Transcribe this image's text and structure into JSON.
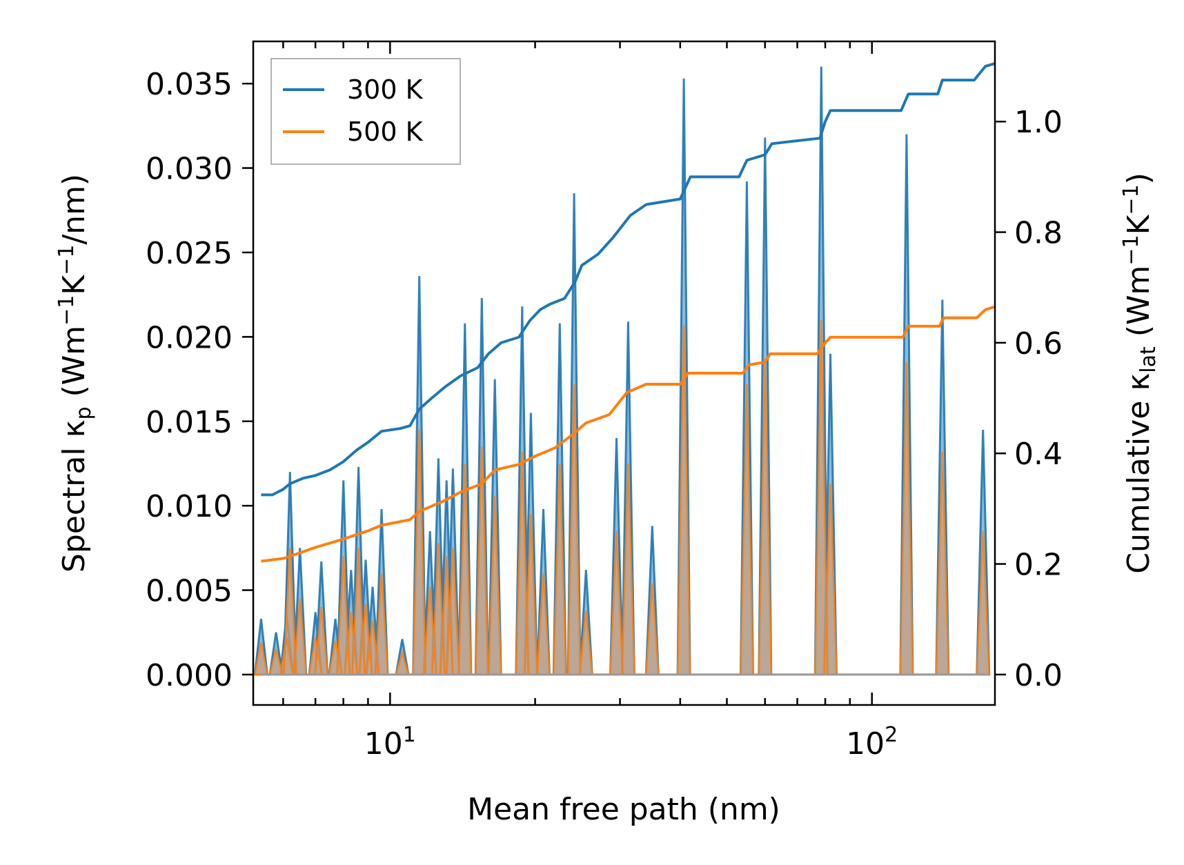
{
  "chart_data": {
    "type": "line",
    "x_scale": "log",
    "xlim": [
      5.2,
      180
    ],
    "ylim_left": [
      -0.0018,
      0.0375
    ],
    "ylim_right": [
      -0.055,
      1.145
    ],
    "xlabel": "Mean free path (nm)",
    "ylabel_left": {
      "base": "Spectral κ",
      "sub": "p",
      "unit_open": " (Wm",
      "exp1": "−1",
      "mid": "K",
      "exp2": "−1",
      "tail": "/nm)"
    },
    "ylabel_right": {
      "base": "Cumulative κ",
      "sub": "lat",
      "unit_open": " (Wm",
      "exp1": "−1",
      "mid": "K",
      "exp2": "−1",
      "tail": ")"
    },
    "x_tick_labels": [
      {
        "value": 10,
        "base": "10",
        "exp": "1"
      },
      {
        "value": 100,
        "base": "10",
        "exp": "2"
      }
    ],
    "left_ticks": [
      {
        "value": 0.0,
        "label": "0.000"
      },
      {
        "value": 0.005,
        "label": "0.005"
      },
      {
        "value": 0.01,
        "label": "0.010"
      },
      {
        "value": 0.015,
        "label": "0.015"
      },
      {
        "value": 0.02,
        "label": "0.020"
      },
      {
        "value": 0.025,
        "label": "0.025"
      },
      {
        "value": 0.03,
        "label": "0.030"
      },
      {
        "value": 0.035,
        "label": "0.035"
      }
    ],
    "right_ticks": [
      {
        "value": 0.0,
        "label": "0.0"
      },
      {
        "value": 0.2,
        "label": "0.2"
      },
      {
        "value": 0.4,
        "label": "0.4"
      },
      {
        "value": 0.6,
        "label": "0.6"
      },
      {
        "value": 0.8,
        "label": "0.8"
      },
      {
        "value": 1.0,
        "label": "1.0"
      }
    ],
    "legend": {
      "position": "top-left",
      "entries": [
        "300 K",
        "500 K"
      ]
    },
    "series": [
      {
        "name": "300 K",
        "color": "#1f77b4",
        "fill_color": "#1f77b4",
        "spectral_peaks": [
          [
            5.4,
            0.0033
          ],
          [
            5.8,
            0.0025
          ],
          [
            6.1,
            0.0036
          ],
          [
            6.2,
            0.012
          ],
          [
            6.5,
            0.0075
          ],
          [
            7.0,
            0.0037
          ],
          [
            7.2,
            0.0067
          ],
          [
            7.7,
            0.0033
          ],
          [
            8.0,
            0.0115
          ],
          [
            8.3,
            0.0062
          ],
          [
            8.6,
            0.0123
          ],
          [
            8.9,
            0.0068
          ],
          [
            9.2,
            0.0052
          ],
          [
            9.6,
            0.0098
          ],
          [
            10.6,
            0.0021
          ],
          [
            11.5,
            0.0236
          ],
          [
            12.1,
            0.0085
          ],
          [
            12.6,
            0.0128
          ],
          [
            13.1,
            0.0115
          ],
          [
            13.5,
            0.0122
          ],
          [
            14.3,
            0.0208
          ],
          [
            15.5,
            0.0223
          ],
          [
            16.5,
            0.0175
          ],
          [
            18.8,
            0.0218
          ],
          [
            19.6,
            0.0155
          ],
          [
            20.8,
            0.0098
          ],
          [
            22.5,
            0.0208
          ],
          [
            24.1,
            0.0285
          ],
          [
            25.5,
            0.0062
          ],
          [
            29.5,
            0.014
          ],
          [
            31.2,
            0.0209
          ],
          [
            35.0,
            0.0088
          ],
          [
            40.7,
            0.0353
          ],
          [
            55.0,
            0.0292
          ],
          [
            60.0,
            0.0318
          ],
          [
            78.5,
            0.036
          ],
          [
            82.0,
            0.019
          ],
          [
            118.0,
            0.032
          ],
          [
            140.0,
            0.0222
          ],
          [
            170.0,
            0.0145
          ]
        ],
        "cumulative": [
          [
            5.4,
            0.325
          ],
          [
            5.7,
            0.325
          ],
          [
            6.0,
            0.335
          ],
          [
            6.2,
            0.345
          ],
          [
            6.6,
            0.355
          ],
          [
            7.0,
            0.36
          ],
          [
            7.5,
            0.37
          ],
          [
            8.0,
            0.385
          ],
          [
            8.5,
            0.405
          ],
          [
            9.0,
            0.42
          ],
          [
            9.6,
            0.44
          ],
          [
            10.5,
            0.445
          ],
          [
            11.0,
            0.45
          ],
          [
            11.5,
            0.48
          ],
          [
            12.2,
            0.5
          ],
          [
            13.0,
            0.52
          ],
          [
            14.0,
            0.54
          ],
          [
            15.2,
            0.555
          ],
          [
            16.0,
            0.58
          ],
          [
            17.0,
            0.6
          ],
          [
            18.5,
            0.61
          ],
          [
            19.5,
            0.64
          ],
          [
            20.5,
            0.66
          ],
          [
            21.5,
            0.67
          ],
          [
            23.0,
            0.68
          ],
          [
            24.2,
            0.71
          ],
          [
            25.0,
            0.74
          ],
          [
            27.0,
            0.76
          ],
          [
            29.0,
            0.79
          ],
          [
            31.5,
            0.83
          ],
          [
            34.0,
            0.85
          ],
          [
            40.0,
            0.86
          ],
          [
            42.0,
            0.9
          ],
          [
            53.0,
            0.9
          ],
          [
            55.0,
            0.93
          ],
          [
            60.0,
            0.94
          ],
          [
            62.0,
            0.96
          ],
          [
            78.0,
            0.97
          ],
          [
            80.0,
            1.0
          ],
          [
            82.0,
            1.02
          ],
          [
            115.0,
            1.02
          ],
          [
            119.0,
            1.05
          ],
          [
            137.0,
            1.05
          ],
          [
            140.0,
            1.075
          ],
          [
            163.0,
            1.075
          ],
          [
            172.0,
            1.1
          ],
          [
            180.0,
            1.105
          ]
        ]
      },
      {
        "name": "500 K",
        "color": "#ff7f0e",
        "fill_color": "#c8a080",
        "spectral_peaks": [
          [
            5.4,
            0.0019
          ],
          [
            5.8,
            0.0015
          ],
          [
            6.1,
            0.0022
          ],
          [
            6.2,
            0.0075
          ],
          [
            6.5,
            0.0045
          ],
          [
            7.0,
            0.0022
          ],
          [
            7.2,
            0.004
          ],
          [
            7.7,
            0.002
          ],
          [
            8.0,
            0.007
          ],
          [
            8.3,
            0.0037
          ],
          [
            8.6,
            0.0075
          ],
          [
            8.9,
            0.0042
          ],
          [
            9.2,
            0.0032
          ],
          [
            9.6,
            0.006
          ],
          [
            10.6,
            0.0013
          ],
          [
            11.5,
            0.0145
          ],
          [
            12.1,
            0.0052
          ],
          [
            12.6,
            0.0078
          ],
          [
            13.1,
            0.007
          ],
          [
            13.5,
            0.0075
          ],
          [
            14.3,
            0.0125
          ],
          [
            15.5,
            0.0135
          ],
          [
            16.5,
            0.0106
          ],
          [
            18.8,
            0.0132
          ],
          [
            19.6,
            0.0095
          ],
          [
            20.8,
            0.006
          ],
          [
            22.5,
            0.0125
          ],
          [
            24.1,
            0.0172
          ],
          [
            25.5,
            0.0038
          ],
          [
            29.5,
            0.0085
          ],
          [
            31.2,
            0.0125
          ],
          [
            35.0,
            0.0054
          ],
          [
            40.7,
            0.0207
          ],
          [
            55.0,
            0.0172
          ],
          [
            60.0,
            0.0187
          ],
          [
            78.5,
            0.021
          ],
          [
            82.0,
            0.0113
          ],
          [
            118.0,
            0.0185
          ],
          [
            140.0,
            0.0132
          ],
          [
            170.0,
            0.0085
          ]
        ],
        "cumulative": [
          [
            5.4,
            0.205
          ],
          [
            6.0,
            0.21
          ],
          [
            6.5,
            0.22
          ],
          [
            7.0,
            0.23
          ],
          [
            8.0,
            0.245
          ],
          [
            9.0,
            0.26
          ],
          [
            9.6,
            0.27
          ],
          [
            11.0,
            0.28
          ],
          [
            11.5,
            0.295
          ],
          [
            13.0,
            0.315
          ],
          [
            14.0,
            0.33
          ],
          [
            15.5,
            0.345
          ],
          [
            16.5,
            0.37
          ],
          [
            18.5,
            0.38
          ],
          [
            20.0,
            0.395
          ],
          [
            22.0,
            0.41
          ],
          [
            24.0,
            0.435
          ],
          [
            25.5,
            0.455
          ],
          [
            28.5,
            0.47
          ],
          [
            31.0,
            0.51
          ],
          [
            34.0,
            0.525
          ],
          [
            40.0,
            0.525
          ],
          [
            41.5,
            0.545
          ],
          [
            54.0,
            0.545
          ],
          [
            55.5,
            0.56
          ],
          [
            60.0,
            0.565
          ],
          [
            61.5,
            0.58
          ],
          [
            77.0,
            0.58
          ],
          [
            80.0,
            0.6
          ],
          [
            82.0,
            0.61
          ],
          [
            116.0,
            0.61
          ],
          [
            119.0,
            0.63
          ],
          [
            138.0,
            0.63
          ],
          [
            141.0,
            0.645
          ],
          [
            165.0,
            0.645
          ],
          [
            172.0,
            0.66
          ],
          [
            180.0,
            0.665
          ]
        ]
      }
    ]
  }
}
